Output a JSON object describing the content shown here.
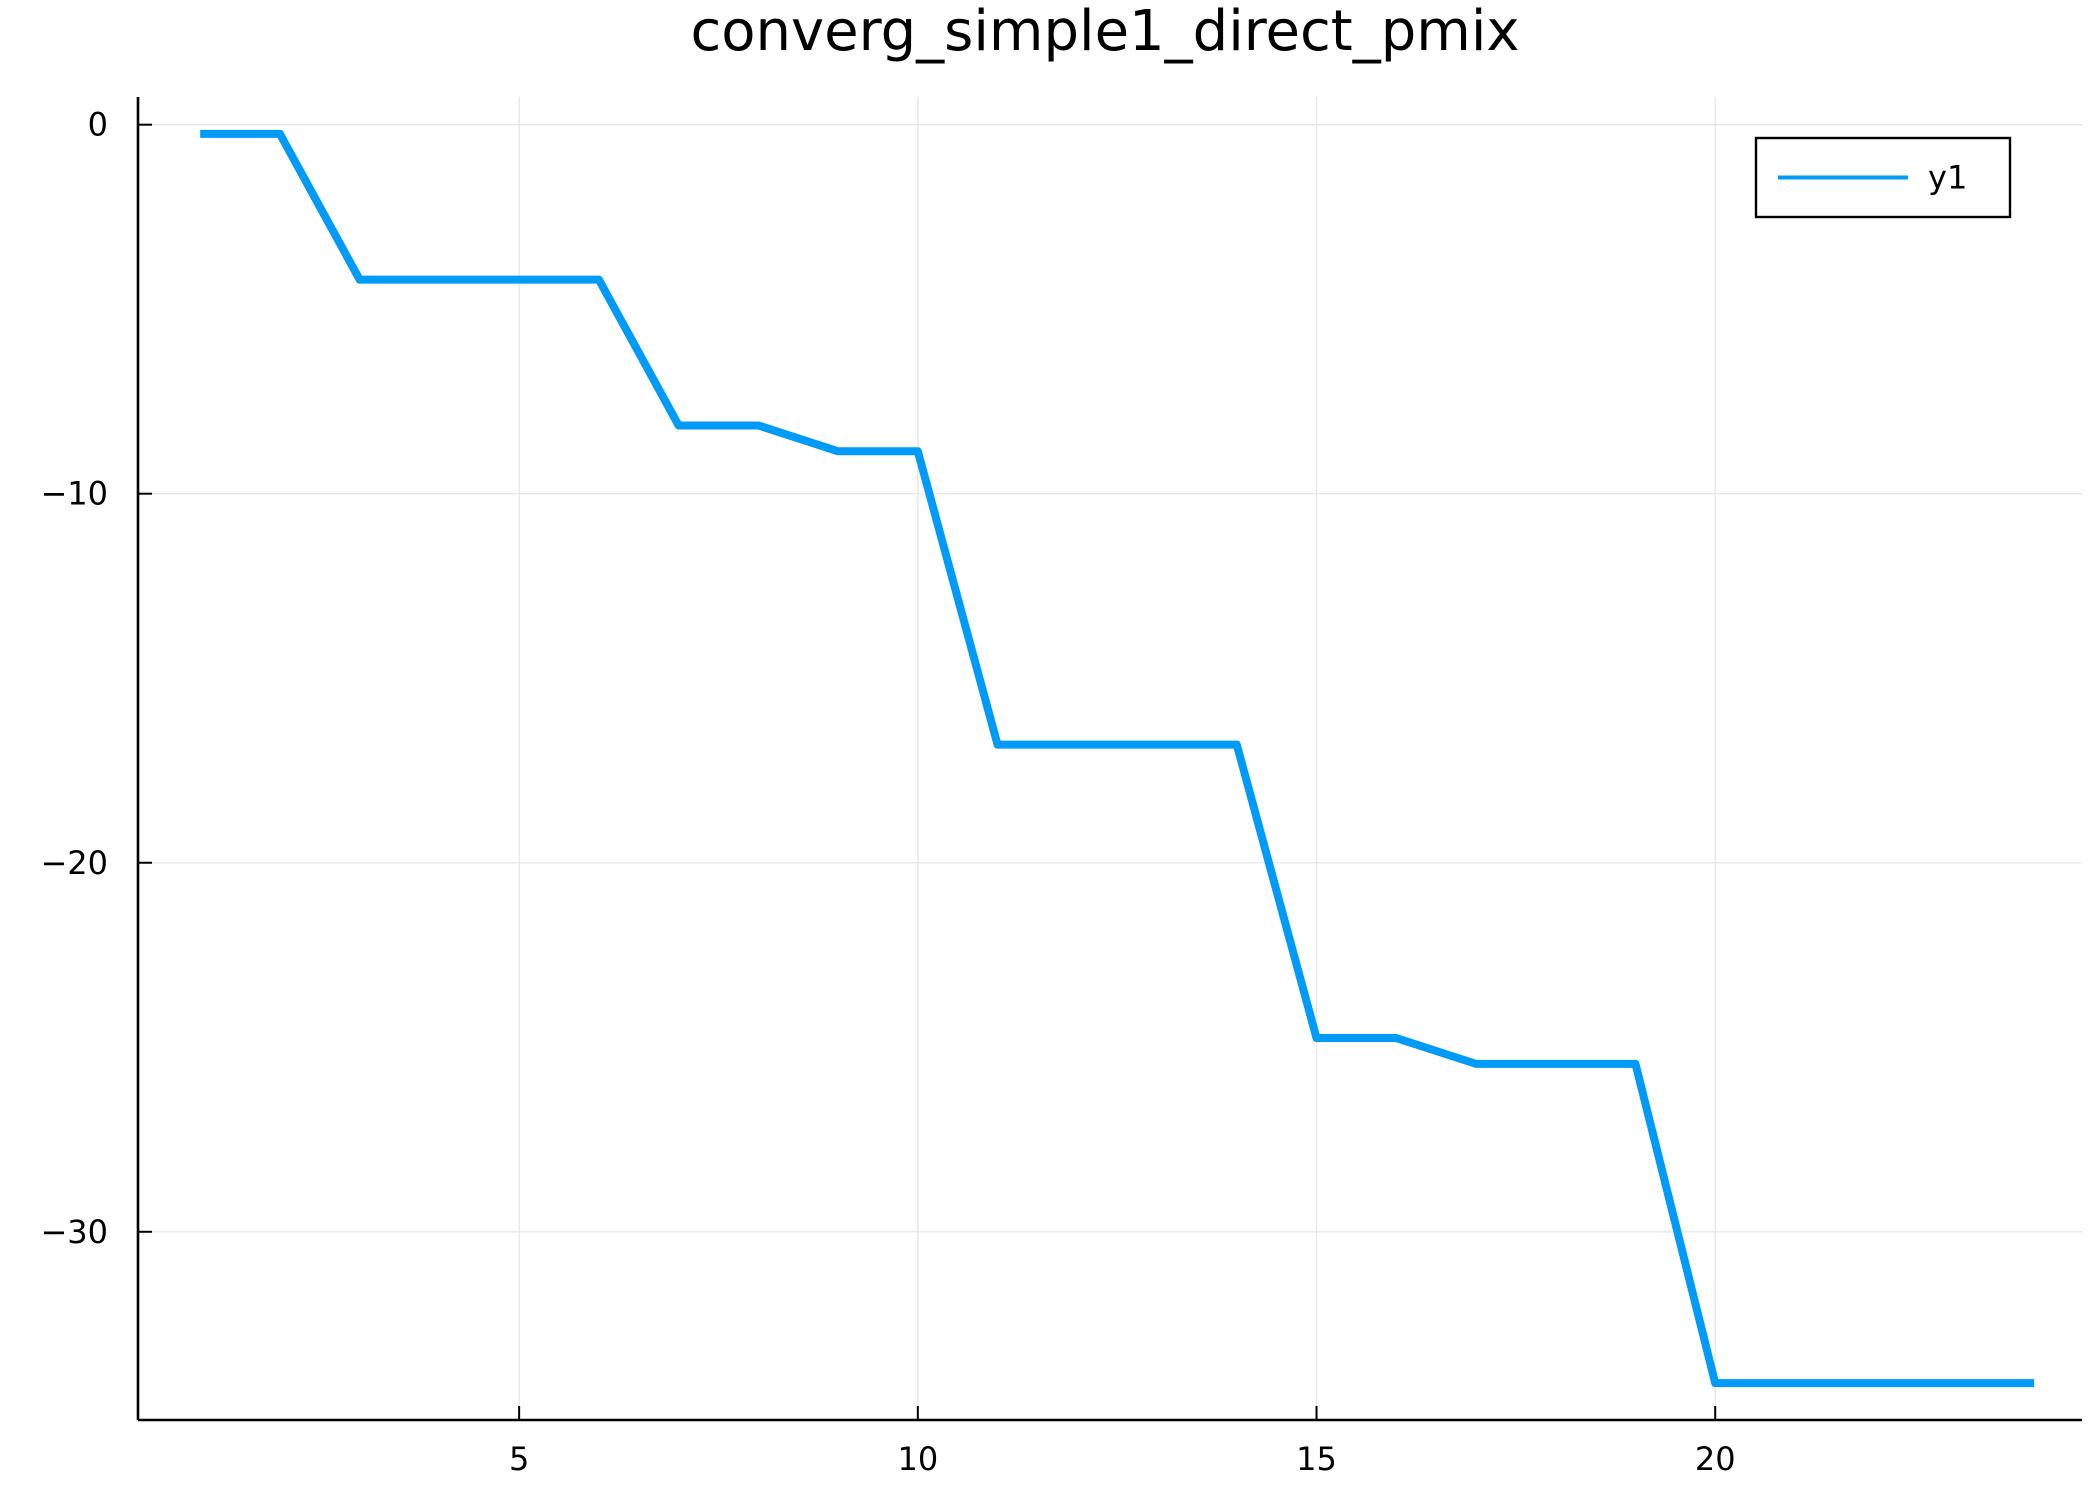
{
  "chart_data": {
    "type": "line",
    "title": "converg_simple1_direct_pmix",
    "xlabel": "",
    "ylabel": "",
    "xlim": [
      0.22,
      24.6
    ],
    "ylim": [
      -35.1,
      0.75
    ],
    "xticks": [
      5,
      10,
      15,
      20
    ],
    "yticks": [
      0,
      -10,
      -20,
      -30
    ],
    "xtick_labels": [
      "5",
      "10",
      "15",
      "20"
    ],
    "ytick_labels": [
      "0",
      "−10",
      "−20",
      "−30"
    ],
    "grid": true,
    "legend_position": "top-right",
    "series": [
      {
        "name": "y1",
        "color": "#009af9",
        "x": [
          1,
          2,
          3,
          4,
          5,
          6,
          7,
          8,
          9,
          10,
          11,
          12,
          13,
          14,
          15,
          16,
          17,
          18,
          19,
          20,
          21,
          22,
          23,
          24
        ],
        "y": [
          -0.25,
          -0.25,
          -4.2,
          -4.2,
          -4.2,
          -4.2,
          -8.15,
          -8.15,
          -8.85,
          -8.85,
          -16.8,
          -16.8,
          -16.8,
          -16.8,
          -24.75,
          -24.75,
          -25.45,
          -25.45,
          -25.45,
          -34.1,
          -34.1,
          -34.1,
          -34.1,
          -34.1
        ]
      }
    ]
  }
}
